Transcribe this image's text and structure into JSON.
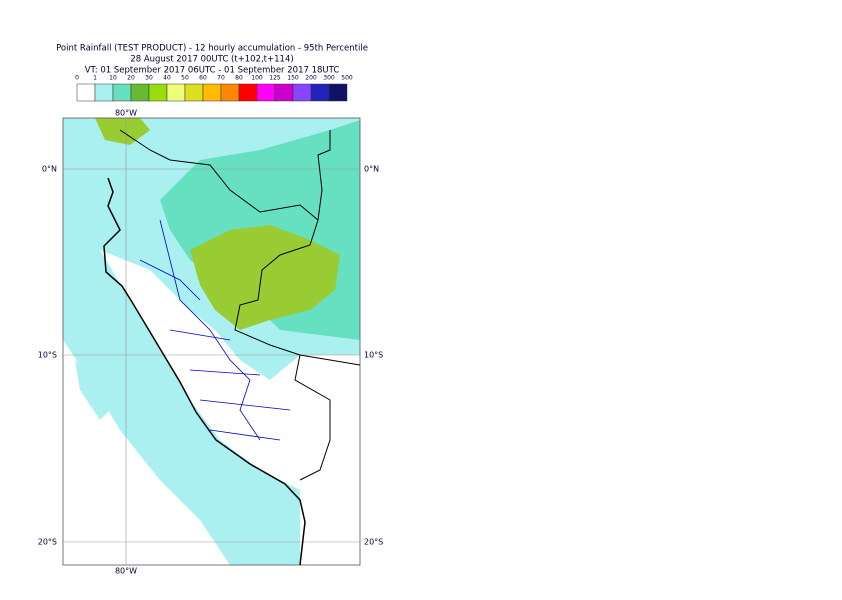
{
  "header": {
    "lines": [
      "Point Rainfall (TEST PRODUCT) - 12 hourly accumulation - 95th Percentile",
      "28 August 2017 00UTC (t+102,t+114)",
      "VT: 01 September 2017 06UTC - 01 September 2017 18UTC"
    ]
  },
  "legend": {
    "ticks": [
      "0",
      "1",
      "10",
      "20",
      "30",
      "40",
      "50",
      "60",
      "70",
      "80",
      "100",
      "125",
      "150",
      "200",
      "300",
      "500"
    ],
    "colors": [
      "#ffffff",
      "#aaf0f0",
      "#66e0c0",
      "#66bb33",
      "#99dd11",
      "#eeff77",
      "#dddd22",
      "#ffbb00",
      "#ff8800",
      "#ff0000",
      "#ff00ff",
      "#cc00cc",
      "#8844ff",
      "#2222bb",
      "#111166"
    ]
  },
  "map": {
    "lon_top": "80°W",
    "lon_bottom": "80°W",
    "lat_left": [
      "0°N",
      "10°S",
      "20°S"
    ],
    "lat_right": [
      "0°N",
      "10°S",
      "20°S"
    ]
  }
}
